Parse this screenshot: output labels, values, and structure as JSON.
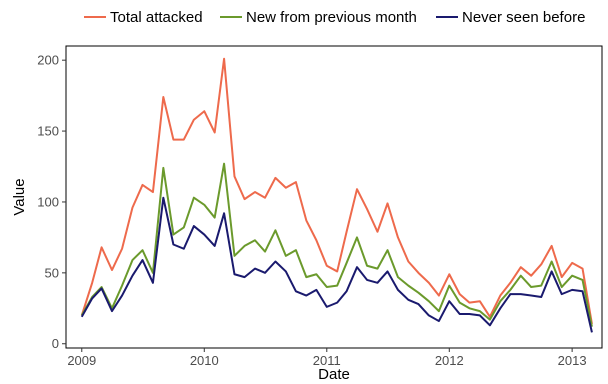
{
  "chart_data": {
    "type": "line",
    "xlabel": "Date",
    "ylabel": "Value",
    "x_ticks": [
      "2009",
      "2010",
      "2011",
      "2012",
      "2013"
    ],
    "y_ticks": [
      0,
      50,
      100,
      150,
      200
    ],
    "xlim": [
      "2008-11-15",
      "2013-03-31"
    ],
    "ylim": [
      -3,
      210
    ],
    "grid": false,
    "legend_position": "top",
    "x": [
      "2009-01",
      "2009-02",
      "2009-03",
      "2009-04",
      "2009-05",
      "2009-06",
      "2009-07",
      "2009-08",
      "2009-09",
      "2009-10",
      "2009-11",
      "2009-12",
      "2010-01",
      "2010-02",
      "2010-03",
      "2010-04",
      "2010-05",
      "2010-06",
      "2010-07",
      "2010-08",
      "2010-09",
      "2010-10",
      "2010-11",
      "2010-12",
      "2011-01",
      "2011-02",
      "2011-03",
      "2011-04",
      "2011-05",
      "2011-06",
      "2011-07",
      "2011-08",
      "2011-09",
      "2011-10",
      "2011-11",
      "2011-12",
      "2012-01",
      "2012-02",
      "2012-03",
      "2012-04",
      "2012-05",
      "2012-06",
      "2012-07",
      "2012-08",
      "2012-09",
      "2012-10",
      "2012-11",
      "2012-12",
      "2013-01",
      "2013-02",
      "2013-03"
    ],
    "series": [
      {
        "name": "Total attacked",
        "color": "#ee6a4c",
        "values": [
          20,
          43,
          68,
          52,
          67,
          96,
          112,
          107,
          174,
          144,
          144,
          158,
          164,
          149,
          201,
          118,
          102,
          107,
          103,
          117,
          110,
          114,
          87,
          73,
          55,
          51,
          79,
          109,
          95,
          79,
          99,
          75,
          58,
          50,
          43,
          34,
          49,
          35,
          29,
          30,
          19,
          34,
          43,
          54,
          48,
          56,
          69,
          47,
          57,
          53,
          14
        ]
      },
      {
        "name": "New from previous month",
        "color": "#6b9a2c",
        "values": [
          20,
          33,
          40,
          25,
          41,
          59,
          66,
          50,
          124,
          77,
          82,
          103,
          98,
          89,
          127,
          62,
          69,
          73,
          65,
          80,
          62,
          66,
          47,
          49,
          40,
          41,
          57,
          75,
          55,
          53,
          66,
          47,
          41,
          36,
          30,
          23,
          41,
          29,
          25,
          23,
          17,
          30,
          38,
          48,
          40,
          41,
          58,
          40,
          48,
          45,
          12
        ]
      },
      {
        "name": "Never seen before",
        "color": "#1a1a6e",
        "values": [
          19,
          32,
          39,
          23,
          34,
          48,
          59,
          43,
          103,
          70,
          67,
          83,
          77,
          69,
          92,
          49,
          47,
          53,
          50,
          58,
          51,
          37,
          34,
          38,
          26,
          29,
          37,
          54,
          45,
          43,
          51,
          38,
          31,
          28,
          20,
          16,
          30,
          21,
          21,
          20,
          13,
          25,
          35,
          35,
          34,
          33,
          51,
          35,
          38,
          37,
          8
        ]
      }
    ]
  }
}
